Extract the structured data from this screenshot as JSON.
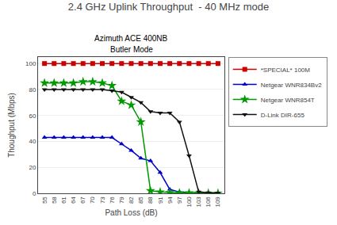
{
  "chart_data": {
    "type": "line",
    "title": "2.4 GHz Uplink Throughput  - 40 MHz mode",
    "subtitle": [
      "Azimuth ACE 400NB",
      "Butler Mode"
    ],
    "xlabel": "Path Loss (dB)",
    "ylabel": "Thoughput (Mbps)",
    "x": [
      55,
      58,
      61,
      64,
      67,
      70,
      73,
      76,
      79,
      82,
      85,
      88,
      91,
      94,
      97,
      100,
      103,
      106,
      109
    ],
    "xlim": [
      53,
      111
    ],
    "xticks": [
      55,
      58,
      61,
      64,
      67,
      70,
      73,
      76,
      79,
      82,
      85,
      88,
      91,
      94,
      97,
      100,
      103,
      106,
      109
    ],
    "ylim": [
      0,
      105
    ],
    "yticks": [
      0,
      20,
      40,
      60,
      80,
      100
    ],
    "grid": "y",
    "legend": "right",
    "series": [
      {
        "name": "*SPECIAL* 100M",
        "color": "#cc0000",
        "marker": "square",
        "values": [
          100,
          100,
          100,
          100,
          100,
          100,
          100,
          100,
          100,
          100,
          100,
          100,
          100,
          100,
          100,
          100,
          100,
          100,
          100
        ]
      },
      {
        "name": "Netgear WNR834Bv2",
        "color": "#0000cc",
        "marker": "triangle-up",
        "values": [
          43,
          43,
          43,
          43,
          43,
          43,
          43,
          43,
          38,
          33,
          27,
          25,
          16,
          3,
          1,
          0.5,
          0.5,
          0.3,
          0.1
        ]
      },
      {
        "name": "Netgear WNR854T",
        "color": "#009900",
        "marker": "star",
        "values": [
          85,
          85,
          85,
          85,
          86,
          86,
          85,
          83,
          71,
          68,
          55,
          2,
          1,
          0.5,
          0.3,
          0.3,
          0.2,
          0.1,
          0.1
        ]
      },
      {
        "name": "D-Link DIR-655",
        "color": "#111111",
        "marker": "triangle-down",
        "values": [
          80,
          80,
          80,
          80,
          80,
          80,
          80,
          79,
          78,
          74,
          70,
          63,
          62,
          62,
          55,
          29,
          1,
          0.5,
          0.3
        ]
      }
    ]
  }
}
